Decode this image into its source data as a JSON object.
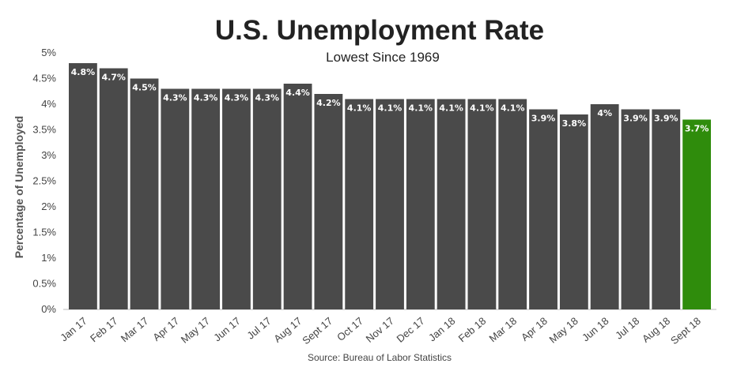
{
  "chart_data": {
    "type": "bar",
    "title": "U.S. Unemployment Rate",
    "subtitle": "Lowest Since 1969",
    "ylabel": "Percentage of Unemployed",
    "xlabel": "",
    "source": "Source: Bureau of Labor Statistics",
    "categories": [
      "Jan 17",
      "Feb 17",
      "Mar 17",
      "Apr 17",
      "May 17",
      "Jun 17",
      "Jul 17",
      "Aug 17",
      "Sept 17",
      "Oct 17",
      "Nov 17",
      "Dec 17",
      "Jan 18",
      "Feb 18",
      "Mar 18",
      "Apr 18",
      "May 18",
      "Jun 18",
      "Jul 18",
      "Aug 18",
      "Sept 18"
    ],
    "values": [
      4.8,
      4.7,
      4.5,
      4.3,
      4.3,
      4.3,
      4.3,
      4.4,
      4.2,
      4.1,
      4.1,
      4.1,
      4.1,
      4.1,
      4.1,
      3.9,
      3.8,
      4,
      3.9,
      3.9,
      3.7
    ],
    "value_labels": [
      "4.8%",
      "4.7%",
      "4.5%",
      "4.3%",
      "4.3%",
      "4.3%",
      "4.3%",
      "4.4%",
      "4.2%",
      "4.1%",
      "4.1%",
      "4.1%",
      "4.1%",
      "4.1%",
      "4.1%",
      "3.9%",
      "3.8%",
      "4%",
      "3.9%",
      "3.9%",
      "3.7%"
    ],
    "yticks": [
      "0%",
      "0.5%",
      "1%",
      "1.5%",
      "2%",
      "2.5%",
      "3%",
      "3.5%",
      "4%",
      "4.5%",
      "5%"
    ],
    "ylim": [
      0,
      5
    ],
    "grid": false,
    "colors": {
      "bar": "#4a4a4a",
      "highlight": "#2f8c0c"
    },
    "highlight_index": 20
  }
}
